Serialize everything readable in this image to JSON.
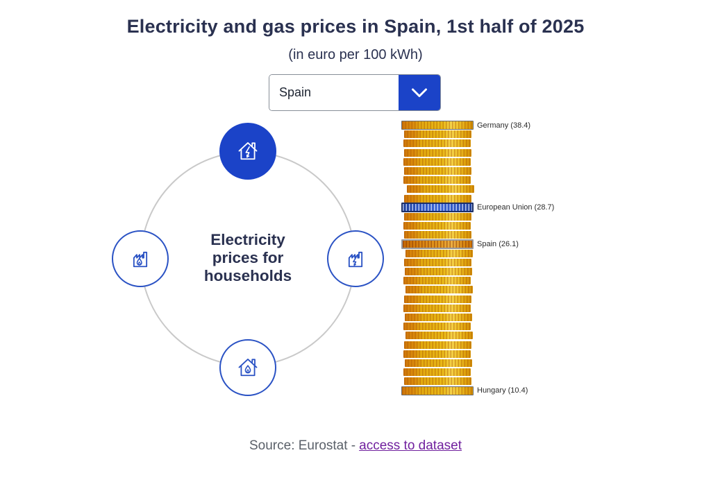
{
  "header": {
    "title": "Electricity and gas prices in Spain, 1st half of 2025",
    "subtitle": "(in euro per 100 kWh)"
  },
  "country_selector": {
    "value": "Spain"
  },
  "category_wheel": {
    "center_label": "Electricity prices for households",
    "center_label_lines": [
      "Electricity",
      "prices for",
      "households"
    ],
    "categories": [
      {
        "name": "electricity-households",
        "icon": "house-lightning-icon",
        "selected": true
      },
      {
        "name": "gas-non-households",
        "icon": "factory-flame-icon",
        "selected": false
      },
      {
        "name": "electricity-non-households",
        "icon": "factory-lightning-icon",
        "selected": false
      },
      {
        "name": "gas-households",
        "icon": "house-flame-icon",
        "selected": false
      }
    ]
  },
  "chart_data": {
    "type": "coin-stack",
    "title": "Electricity prices for households, 1st half of 2025",
    "unit": "euro per 100 kWh",
    "order": "highest price at top, lowest at bottom",
    "total_coins": 30,
    "labeled_coins": [
      {
        "label": "Germany",
        "value": 38.4,
        "display": "Germany (38.4)",
        "index": 0,
        "style": "extreme"
      },
      {
        "label": "European Union",
        "value": 28.7,
        "display": "European Union (28.7)",
        "index": 9,
        "style": "eu"
      },
      {
        "label": "Spain",
        "value": 26.1,
        "display": "Spain (26.1)",
        "index": 13,
        "style": "selected"
      },
      {
        "label": "Hungary",
        "value": 10.4,
        "display": "Hungary (10.4)",
        "index": 29,
        "style": "extreme"
      }
    ]
  },
  "footer": {
    "source_text": "Source: Eurostat -",
    "link_text": "access to dataset"
  },
  "colors": {
    "accent_blue": "#1b43c8",
    "icon_blue": "#2a52c4",
    "title_navy": "#2a3150",
    "ring_gray": "#c9c9c9",
    "coin_gold": "#e5b214",
    "coin_eu_blue": "#2e56c4",
    "coin_spain_orange": "#dd8b0e",
    "label_dark": "#2b2b2b",
    "source_gray": "#5a6069",
    "link_purple": "#70209e"
  }
}
